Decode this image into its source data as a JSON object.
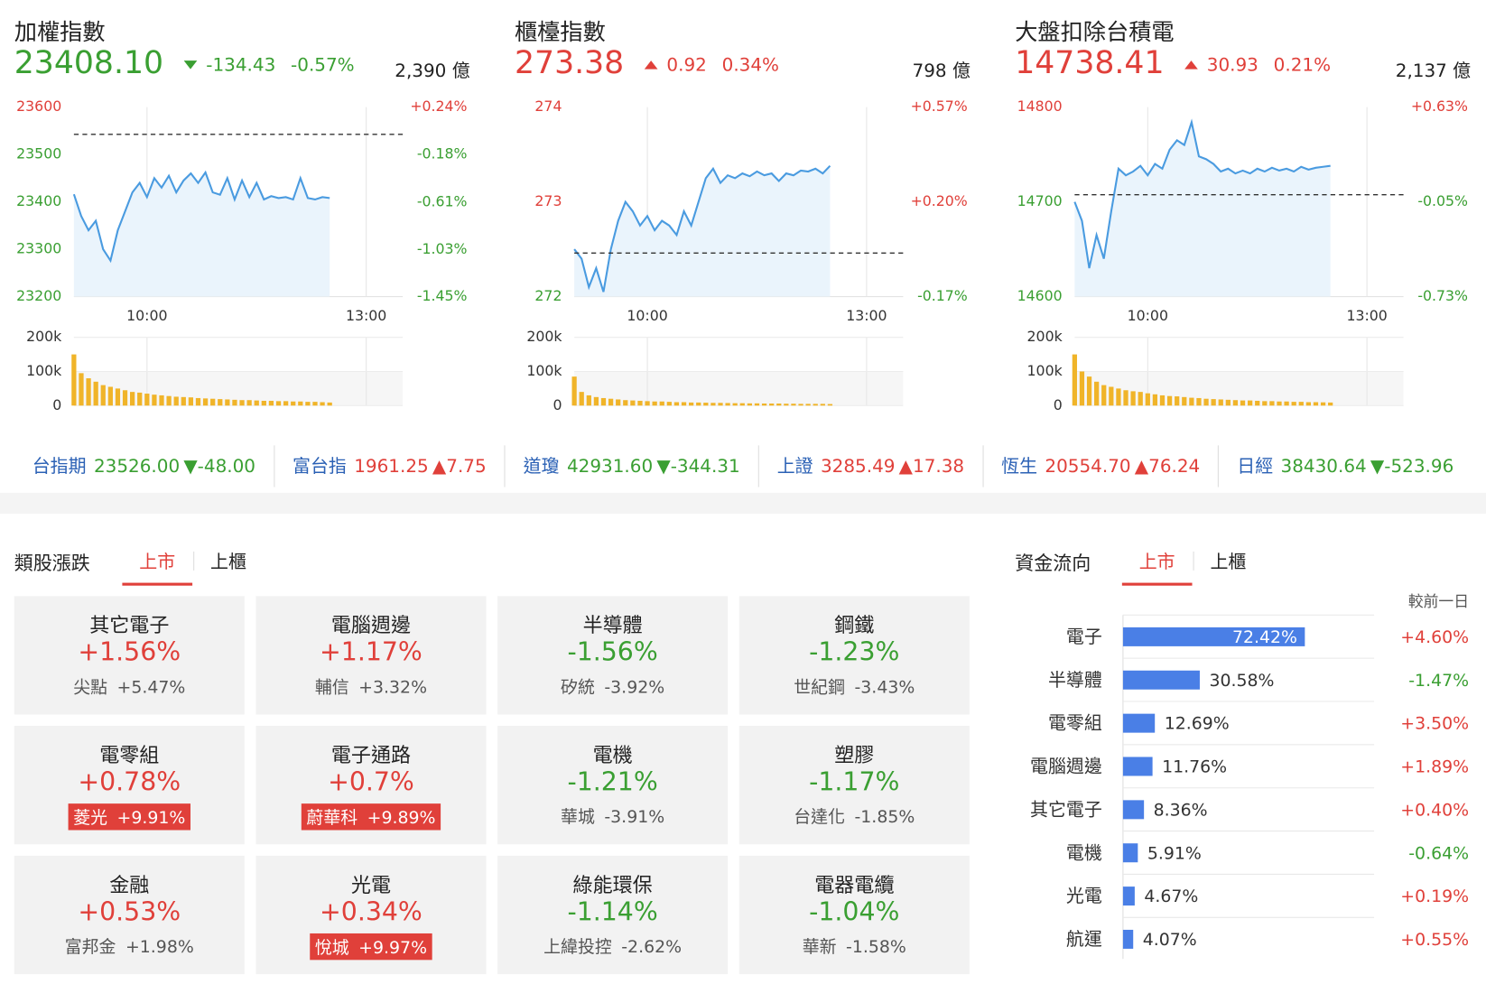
{
  "indices": [
    {
      "name": "加權指數",
      "price": "23408.10",
      "change": "-134.43",
      "pct": "-0.57%",
      "turnover": "2,390 億",
      "direction": "down"
    },
    {
      "name": "櫃檯指數",
      "price": "273.38",
      "change": "0.92",
      "pct": "0.34%",
      "turnover": "798 億",
      "direction": "up"
    },
    {
      "name": "大盤扣除台積電",
      "price": "14738.41",
      "change": "30.93",
      "pct": "0.21%",
      "turnover": "2,137 億",
      "direction": "up"
    }
  ],
  "chart_data": [
    {
      "type": "line",
      "color": "#4a9be0",
      "area_color": "#eaf4fc",
      "grid": "x",
      "x": [
        "09:00",
        "09:06",
        "09:12",
        "09:18",
        "09:24",
        "09:30",
        "09:36",
        "09:42",
        "09:48",
        "09:54",
        "10:00",
        "10:06",
        "10:12",
        "10:18",
        "10:24",
        "10:30",
        "10:36",
        "10:42",
        "10:48",
        "10:54",
        "11:00",
        "11:06",
        "11:12",
        "11:18",
        "11:24",
        "11:30",
        "11:36",
        "11:42",
        "11:48",
        "11:54",
        "12:00",
        "12:06",
        "12:12",
        "12:18",
        "12:24",
        "12:30"
      ],
      "values": [
        23416,
        23370,
        23340,
        23360,
        23300,
        23276,
        23340,
        23380,
        23420,
        23440,
        23410,
        23450,
        23430,
        23455,
        23420,
        23445,
        23460,
        23440,
        23462,
        23420,
        23415,
        23450,
        23405,
        23445,
        23410,
        23440,
        23405,
        23412,
        23408,
        23410,
        23405,
        23450,
        23408,
        23405,
        23410,
        23408
      ],
      "prev_close": 23542.53,
      "xlim": [
        "09:00",
        "13:30"
      ],
      "xticks": [
        "10:00",
        "13:00"
      ],
      "ylim": [
        23200,
        23600
      ],
      "yticks": [
        23600,
        23500,
        23400,
        23300,
        23200
      ],
      "y2lim": [
        -1.45,
        0.24
      ],
      "y2ticks": [
        {
          "value": 0.24,
          "label": "+0.24%"
        },
        {
          "value": -0.18,
          "label": "-0.18%"
        },
        {
          "value": -0.61,
          "label": "-0.61%"
        },
        {
          "value": -1.03,
          "label": "-1.03%"
        },
        {
          "value": -1.45,
          "label": "-1.45%"
        }
      ]
    },
    {
      "type": "bar",
      "color": "#f0b429",
      "x": [
        "09:00",
        "09:06",
        "09:12",
        "09:18",
        "09:24",
        "09:30",
        "09:36",
        "09:42",
        "09:48",
        "09:54",
        "10:00",
        "10:06",
        "10:12",
        "10:18",
        "10:24",
        "10:30",
        "10:36",
        "10:42",
        "10:48",
        "10:54",
        "11:00",
        "11:06",
        "11:12",
        "11:18",
        "11:24",
        "11:30",
        "11:36",
        "11:42",
        "11:48",
        "11:54",
        "12:00",
        "12:06",
        "12:12",
        "12:18",
        "12:24",
        "12:30"
      ],
      "values": [
        150000,
        95000,
        80000,
        70000,
        60000,
        55000,
        50000,
        45000,
        40000,
        38000,
        35000,
        32000,
        30000,
        28000,
        26000,
        25000,
        24000,
        22000,
        21000,
        20000,
        19000,
        18000,
        17000,
        16000,
        16000,
        15000,
        14000,
        14000,
        13000,
        13000,
        12000,
        12000,
        11000,
        11000,
        10000,
        9000
      ],
      "ylim": [
        0,
        200000
      ],
      "yticks": [
        {
          "value": 200000,
          "label": "200k"
        },
        {
          "value": 100000,
          "label": "100k"
        },
        0
      ]
    },
    {
      "type": "line",
      "color": "#4a9be0",
      "area_color": "#eaf4fc",
      "grid": "x",
      "x": [
        "09:00",
        "09:06",
        "09:12",
        "09:18",
        "09:24",
        "09:30",
        "09:36",
        "09:42",
        "09:48",
        "09:54",
        "10:00",
        "10:06",
        "10:12",
        "10:18",
        "10:24",
        "10:30",
        "10:36",
        "10:42",
        "10:48",
        "10:54",
        "11:00",
        "11:06",
        "11:12",
        "11:18",
        "11:24",
        "11:30",
        "11:36",
        "11:42",
        "11:48",
        "11:54",
        "12:00",
        "12:06",
        "12:12",
        "12:18",
        "12:24",
        "12:30"
      ],
      "values": [
        272.5,
        272.4,
        272.1,
        272.3,
        272.05,
        272.5,
        272.8,
        273.0,
        272.9,
        272.75,
        272.85,
        272.7,
        272.8,
        272.75,
        272.65,
        272.9,
        272.75,
        273.0,
        273.25,
        273.35,
        273.2,
        273.28,
        273.25,
        273.3,
        273.27,
        273.32,
        273.28,
        273.3,
        273.22,
        273.3,
        273.28,
        273.33,
        273.32,
        273.35,
        273.3,
        273.38
      ],
      "prev_close": 272.46,
      "xlim": [
        "09:00",
        "13:30"
      ],
      "xticks": [
        "10:00",
        "13:00"
      ],
      "ylim": [
        272,
        274
      ],
      "yticks": [
        274,
        273,
        272
      ],
      "y2lim": [
        -0.17,
        0.57
      ],
      "y2ticks": [
        {
          "value": 0.57,
          "label": "+0.57%"
        },
        {
          "value": 0.2,
          "label": "+0.20%"
        },
        {
          "value": -0.17,
          "label": "-0.17%"
        }
      ]
    },
    {
      "type": "bar",
      "color": "#f0b429",
      "x": [
        "09:00",
        "09:06",
        "09:12",
        "09:18",
        "09:24",
        "09:30",
        "09:36",
        "09:42",
        "09:48",
        "09:54",
        "10:00",
        "10:06",
        "10:12",
        "10:18",
        "10:24",
        "10:30",
        "10:36",
        "10:42",
        "10:48",
        "10:54",
        "11:00",
        "11:06",
        "11:12",
        "11:18",
        "11:24",
        "11:30",
        "11:36",
        "11:42",
        "11:48",
        "11:54",
        "12:00",
        "12:06",
        "12:12",
        "12:18",
        "12:24",
        "12:30"
      ],
      "values": [
        85000,
        40000,
        30000,
        25000,
        22000,
        20000,
        18000,
        16000,
        15000,
        14000,
        13000,
        12000,
        12000,
        11000,
        10000,
        10000,
        9000,
        9000,
        8500,
        8000,
        8000,
        7500,
        7000,
        7000,
        6500,
        6500,
        6000,
        6000,
        6000,
        5500,
        5500,
        5000,
        5000,
        5000,
        5000,
        4500
      ],
      "ylim": [
        0,
        200000
      ],
      "yticks": [
        {
          "value": 200000,
          "label": "200k"
        },
        {
          "value": 100000,
          "label": "100k"
        },
        0
      ]
    },
    {
      "type": "line",
      "color": "#4a9be0",
      "area_color": "#eaf4fc",
      "grid": "x",
      "x": [
        "09:00",
        "09:06",
        "09:12",
        "09:18",
        "09:24",
        "09:30",
        "09:36",
        "09:42",
        "09:48",
        "09:54",
        "10:00",
        "10:06",
        "10:12",
        "10:18",
        "10:24",
        "10:30",
        "10:36",
        "10:42",
        "10:48",
        "10:54",
        "11:00",
        "11:06",
        "11:12",
        "11:18",
        "11:24",
        "11:30",
        "11:36",
        "11:42",
        "11:48",
        "11:54",
        "12:00",
        "12:06",
        "12:12",
        "12:18",
        "12:24",
        "12:30"
      ],
      "values": [
        14700,
        14680,
        14630,
        14665,
        14640,
        14690,
        14735,
        14728,
        14732,
        14738,
        14728,
        14740,
        14735,
        14755,
        14765,
        14760,
        14784,
        14748,
        14745,
        14740,
        14732,
        14735,
        14730,
        14733,
        14730,
        14735,
        14732,
        14736,
        14733,
        14735,
        14732,
        14737,
        14734,
        14736,
        14737,
        14738
      ],
      "prev_close": 14707.48,
      "xlim": [
        "09:00",
        "13:30"
      ],
      "xticks": [
        "10:00",
        "13:00"
      ],
      "ylim": [
        14600,
        14800
      ],
      "yticks": [
        14800,
        14700,
        14600
      ],
      "y2lim": [
        -0.73,
        0.63
      ],
      "y2ticks": [
        {
          "value": 0.63,
          "label": "+0.63%"
        },
        {
          "value": -0.05,
          "label": "-0.05%"
        },
        {
          "value": -0.73,
          "label": "-0.73%"
        }
      ]
    },
    {
      "type": "bar",
      "color": "#f0b429",
      "x": [
        "09:00",
        "09:06",
        "09:12",
        "09:18",
        "09:24",
        "09:30",
        "09:36",
        "09:42",
        "09:48",
        "09:54",
        "10:00",
        "10:06",
        "10:12",
        "10:18",
        "10:24",
        "10:30",
        "10:36",
        "10:42",
        "10:48",
        "10:54",
        "11:00",
        "11:06",
        "11:12",
        "11:18",
        "11:24",
        "11:30",
        "11:36",
        "11:42",
        "11:48",
        "11:54",
        "12:00",
        "12:06",
        "12:12",
        "12:18",
        "12:24",
        "12:30"
      ],
      "values": [
        150000,
        100000,
        85000,
        70000,
        60000,
        55000,
        50000,
        45000,
        42000,
        40000,
        36000,
        33000,
        30000,
        28000,
        27000,
        25000,
        23000,
        22000,
        20000,
        19000,
        18000,
        17000,
        16000,
        15000,
        15000,
        14000,
        13000,
        13000,
        12000,
        12000,
        11000,
        11000,
        10000,
        10000,
        9500,
        9000
      ],
      "ylim": [
        0,
        200000
      ],
      "yticks": [
        {
          "value": 200000,
          "label": "200k"
        },
        {
          "value": 100000,
          "label": "100k"
        },
        0
      ]
    },
    {
      "type": "hbar",
      "title": "資金流向",
      "tabs": [
        "上市",
        "上櫃"
      ],
      "active_tab": 0,
      "column_label": "較前一日",
      "color": "#4a7fe6",
      "categories": [
        "電子",
        "半導體",
        "電零組",
        "電腦週邊",
        "其它電子",
        "電機",
        "光電",
        "航運"
      ],
      "values": [
        72.42,
        30.58,
        12.69,
        11.76,
        8.36,
        5.91,
        4.67,
        4.07
      ],
      "value_labels": [
        "72.42%",
        "30.58%",
        "12.69%",
        "11.76%",
        "8.36%",
        "5.91%",
        "4.67%",
        "4.07%"
      ],
      "changes": [
        "+4.60%",
        "-1.47%",
        "+3.50%",
        "+1.89%",
        "+0.40%",
        "-0.64%",
        "+0.19%",
        "+0.55%"
      ],
      "xlim": [
        0,
        100
      ]
    }
  ],
  "tickers": [
    {
      "name": "台指期",
      "value": "23526.00",
      "change": "▼-48.00",
      "direction": "down"
    },
    {
      "name": "富台指",
      "value": "1961.25",
      "change": "▲7.75",
      "direction": "up"
    },
    {
      "name": "道瓊",
      "value": "42931.60",
      "change": "▼-344.31",
      "direction": "down"
    },
    {
      "name": "上證",
      "value": "3285.49",
      "change": "▲17.38",
      "direction": "up"
    },
    {
      "name": "恆生",
      "value": "20554.70",
      "change": "▲76.24",
      "direction": "up"
    },
    {
      "name": "日經",
      "value": "38430.64",
      "change": "▼-523.96",
      "direction": "down"
    }
  ],
  "sectors": {
    "title": "類股漲跌",
    "tabs": [
      "上市",
      "上櫃"
    ],
    "active_tab": 0,
    "items": [
      {
        "name": "其它電子",
        "pct": "+1.56%",
        "stock": "尖點",
        "stock_pct": "+5.47%",
        "highlight": false
      },
      {
        "name": "電腦週邊",
        "pct": "+1.17%",
        "stock": "輔信",
        "stock_pct": "+3.32%",
        "highlight": false
      },
      {
        "name": "半導體",
        "pct": "-1.56%",
        "stock": "矽統",
        "stock_pct": "-3.92%",
        "highlight": false
      },
      {
        "name": "鋼鐵",
        "pct": "-1.23%",
        "stock": "世紀鋼",
        "stock_pct": "-3.43%",
        "highlight": false
      },
      {
        "name": "電零組",
        "pct": "+0.78%",
        "stock": "菱光",
        "stock_pct": "+9.91%",
        "highlight": true
      },
      {
        "name": "電子通路",
        "pct": "+0.7%",
        "stock": "蔚華科",
        "stock_pct": "+9.89%",
        "highlight": true
      },
      {
        "name": "電機",
        "pct": "-1.21%",
        "stock": "華城",
        "stock_pct": "-3.91%",
        "highlight": false
      },
      {
        "name": "塑膠",
        "pct": "-1.17%",
        "stock": "台達化",
        "stock_pct": "-1.85%",
        "highlight": false
      },
      {
        "name": "金融",
        "pct": "+0.53%",
        "stock": "富邦金",
        "stock_pct": "+1.98%",
        "highlight": false
      },
      {
        "name": "光電",
        "pct": "+0.34%",
        "stock": "悅城",
        "stock_pct": "+9.97%",
        "highlight": true
      },
      {
        "name": "綠能環保",
        "pct": "-1.14%",
        "stock": "上緯投控",
        "stock_pct": "-2.62%",
        "highlight": false
      },
      {
        "name": "電器電纜",
        "pct": "-1.04%",
        "stock": "華新",
        "stock_pct": "-1.58%",
        "highlight": false
      }
    ]
  }
}
